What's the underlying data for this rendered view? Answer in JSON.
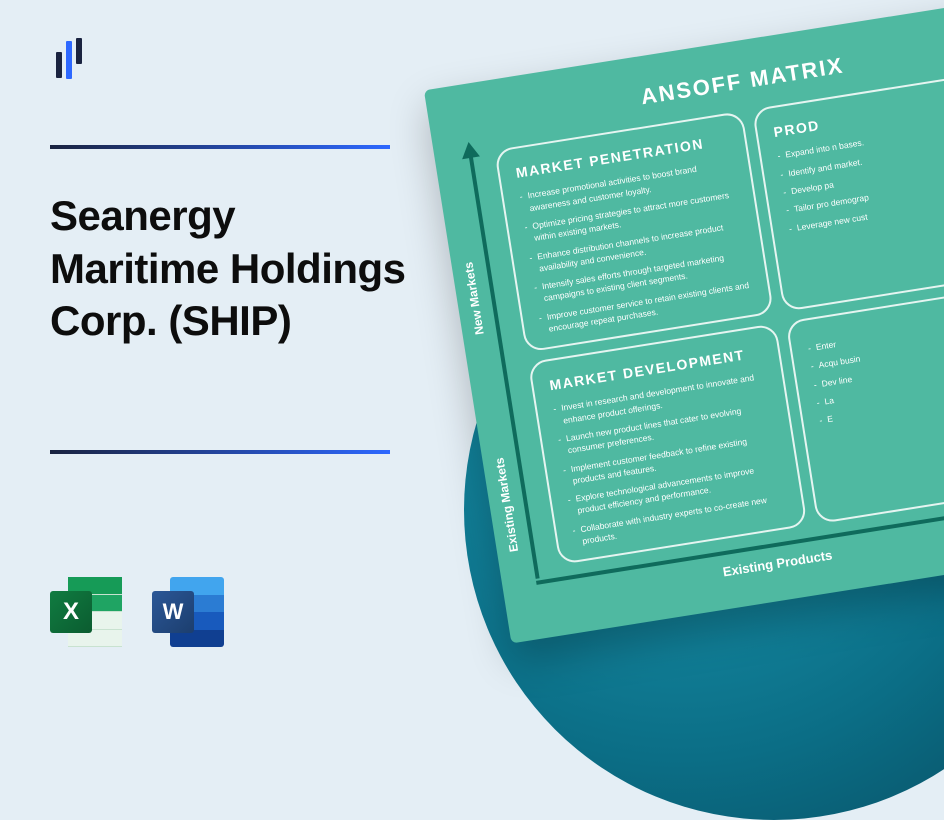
{
  "header": {
    "title": "Seanergy Maritime Holdings Corp. (SHIP)"
  },
  "icons": {
    "excel": "X",
    "word": "W"
  },
  "matrix": {
    "title": "ANSOFF MATRIX",
    "y_axis_top": "New Markets",
    "y_axis_bottom": "Existing Markets",
    "x_axis_left": "Existing Products",
    "quadrants": {
      "top_left": {
        "title": "MARKET PENETRATION",
        "items": [
          "Increase promotional activities to boost brand awareness and customer loyalty.",
          "Optimize pricing strategies to attract more customers within existing markets.",
          "Enhance distribution channels to increase product availability and convenience.",
          "Intensify sales efforts through targeted marketing campaigns to existing client segments.",
          "Improve customer service to retain existing clients and encourage repeat purchases."
        ]
      },
      "top_right": {
        "title": "PROD",
        "items": [
          "Expand into n bases.",
          "Identify and market.",
          "Develop pa",
          "Tailor pro demograp",
          "Leverage new cust"
        ]
      },
      "bottom_left": {
        "title": "MARKET DEVELOPMENT",
        "items": [
          "Invest in research and development to innovate and enhance product offerings.",
          "Launch new product lines that cater to evolving consumer preferences.",
          "Implement customer feedback to refine existing products and features.",
          "Explore technological advancements to improve product efficiency and performance.",
          "Collaborate with industry experts to co-create new products."
        ]
      },
      "bottom_right": {
        "title": "",
        "items": [
          "Enter",
          "Acqu busin",
          "Dev line",
          "La",
          "E"
        ]
      }
    }
  },
  "colors": {
    "page_bg": "#e4eef5",
    "accent_dark": "#1a2340",
    "accent_blue": "#2d68ff",
    "card_bg": "#4fb9a1",
    "arrow": "#0f6b5c",
    "circle_start": "#1b9bb4",
    "circle_end": "#084a5e",
    "excel": "#107c41",
    "word": "#2b5797"
  }
}
